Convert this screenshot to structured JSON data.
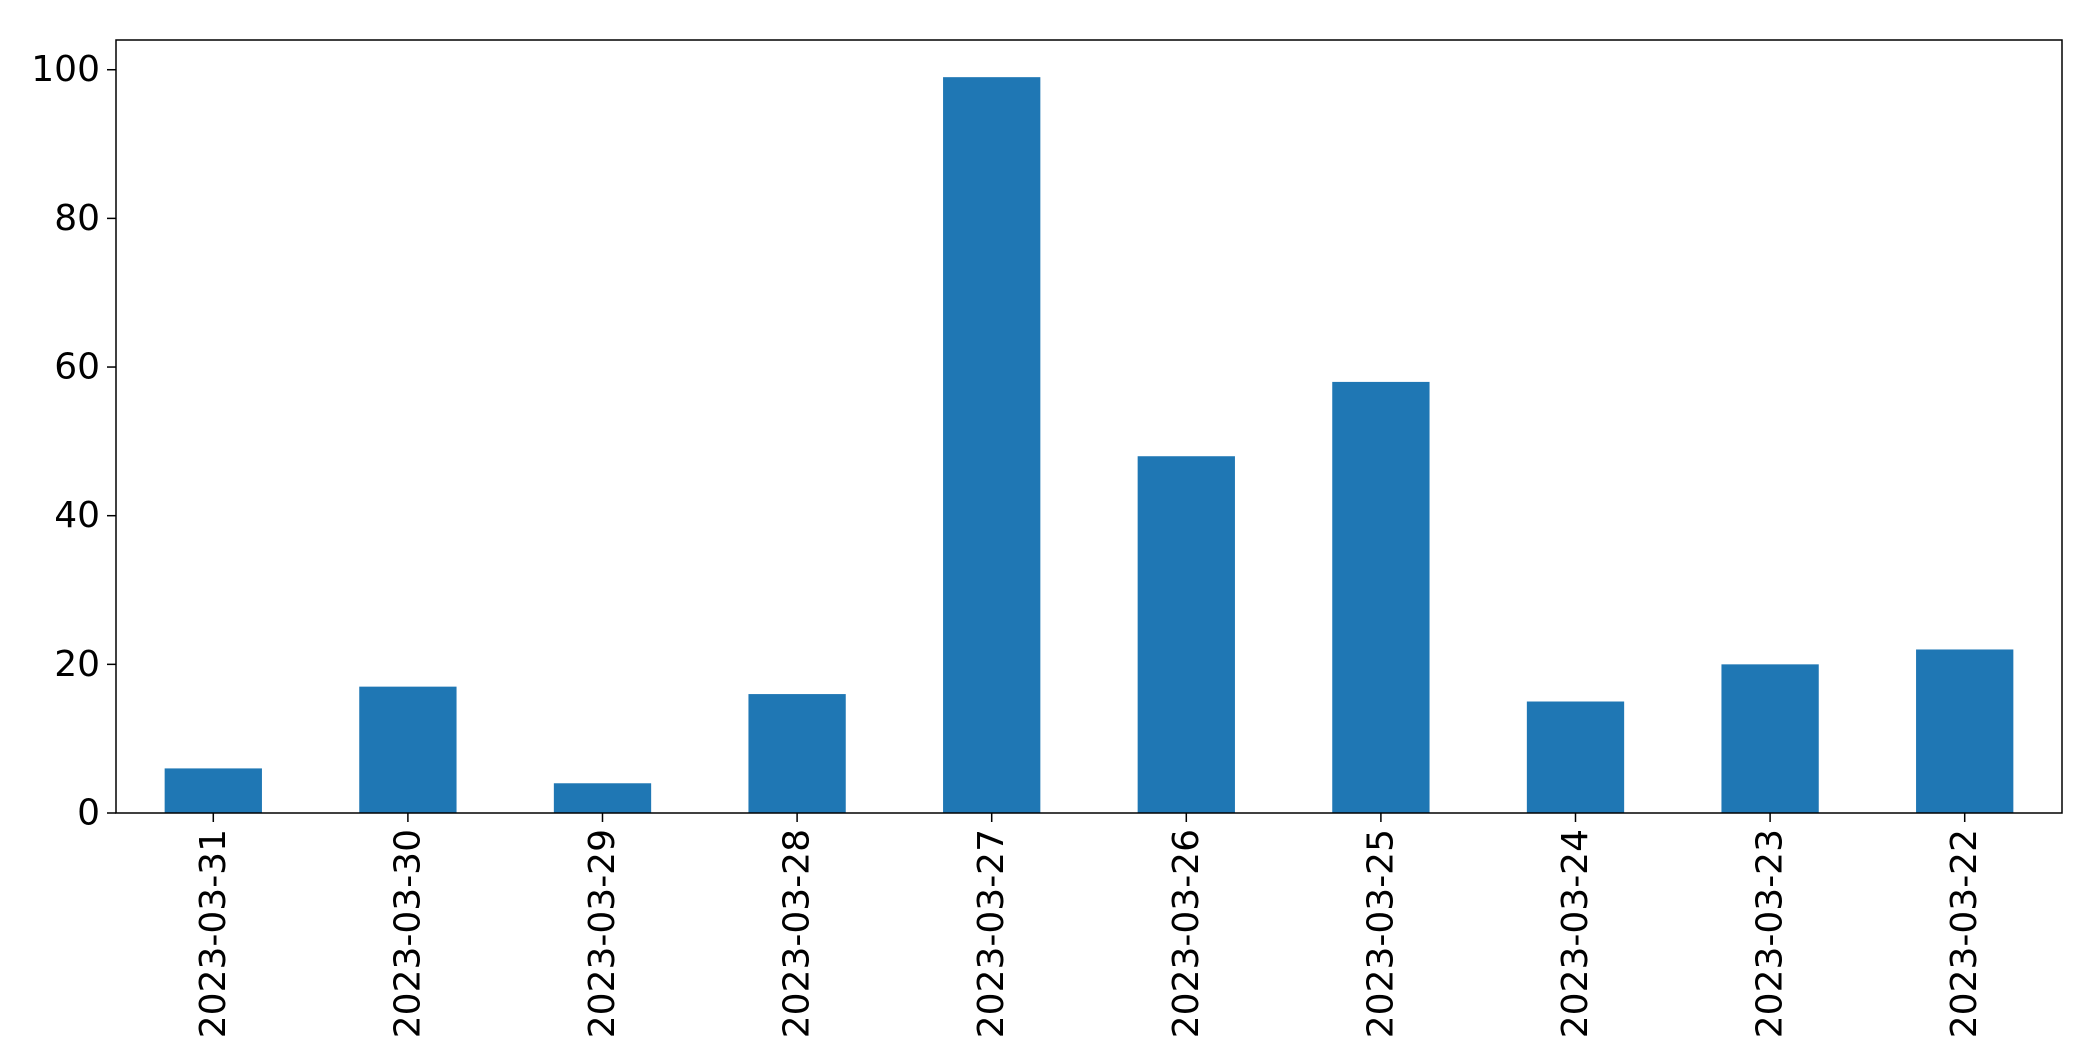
{
  "chart_data": {
    "type": "bar",
    "categories": [
      "2023-03-31",
      "2023-03-30",
      "2023-03-29",
      "2023-03-28",
      "2023-03-27",
      "2023-03-26",
      "2023-03-25",
      "2023-03-24",
      "2023-03-23",
      "2023-03-22"
    ],
    "values": [
      6,
      17,
      4,
      16,
      99,
      48,
      58,
      15,
      20,
      22
    ],
    "title": "",
    "xlabel": "",
    "ylabel": "",
    "ylim": [
      0,
      104
    ],
    "yticks": [
      0,
      20,
      40,
      60,
      80,
      100
    ],
    "grid": false,
    "legend": "none",
    "bar_color": "#1f77b4",
    "axis_color": "#000000"
  }
}
